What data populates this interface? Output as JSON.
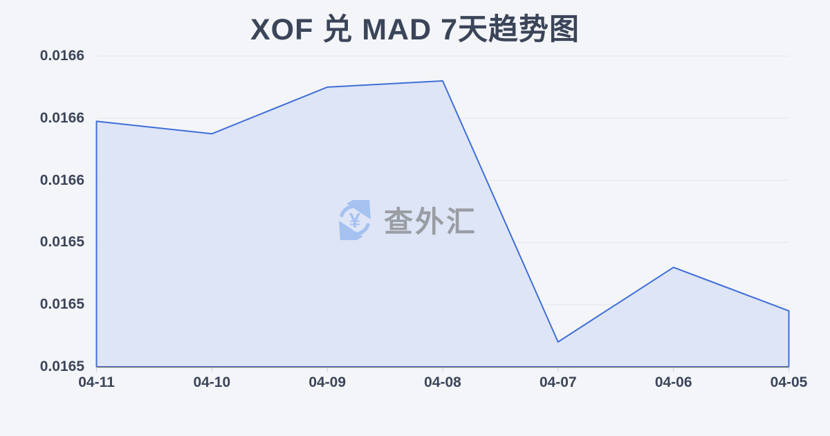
{
  "watermark": {
    "text": "查外汇",
    "icon": "currency-exchange-icon"
  },
  "colors": {
    "background": "#f4f5f8",
    "text_dark": "#3b4559",
    "line": "#3e6ed7",
    "fill": "#d9e2f6",
    "grid": "#e4e6eb",
    "axis": "#6e7079",
    "tick": "#c9ccd4",
    "watermark_blue": "#a6c2f1",
    "watermark_text": "#9a9da3"
  },
  "chart_data": {
    "type": "area",
    "title": "XOF 兑 MAD 7天趋势图",
    "categories": [
      "04-11",
      "04-10",
      "04-09",
      "04-08",
      "04-07",
      "04-06",
      "04-05"
    ],
    "values": [
      0.016579,
      0.016575,
      0.01659,
      0.016592,
      0.016508,
      0.016532,
      0.016518
    ],
    "xlabel": "",
    "ylabel": "",
    "ylim": [
      0.0165,
      0.0166
    ],
    "y_ticks": [
      0.0165,
      0.01652,
      0.01654,
      0.01656,
      0.01658,
      0.0166
    ],
    "y_tick_labels": [
      "0.0165",
      "0.0165",
      "0.0165",
      "0.0166",
      "0.0166",
      "0.0166"
    ],
    "grid": true,
    "legend": false
  }
}
